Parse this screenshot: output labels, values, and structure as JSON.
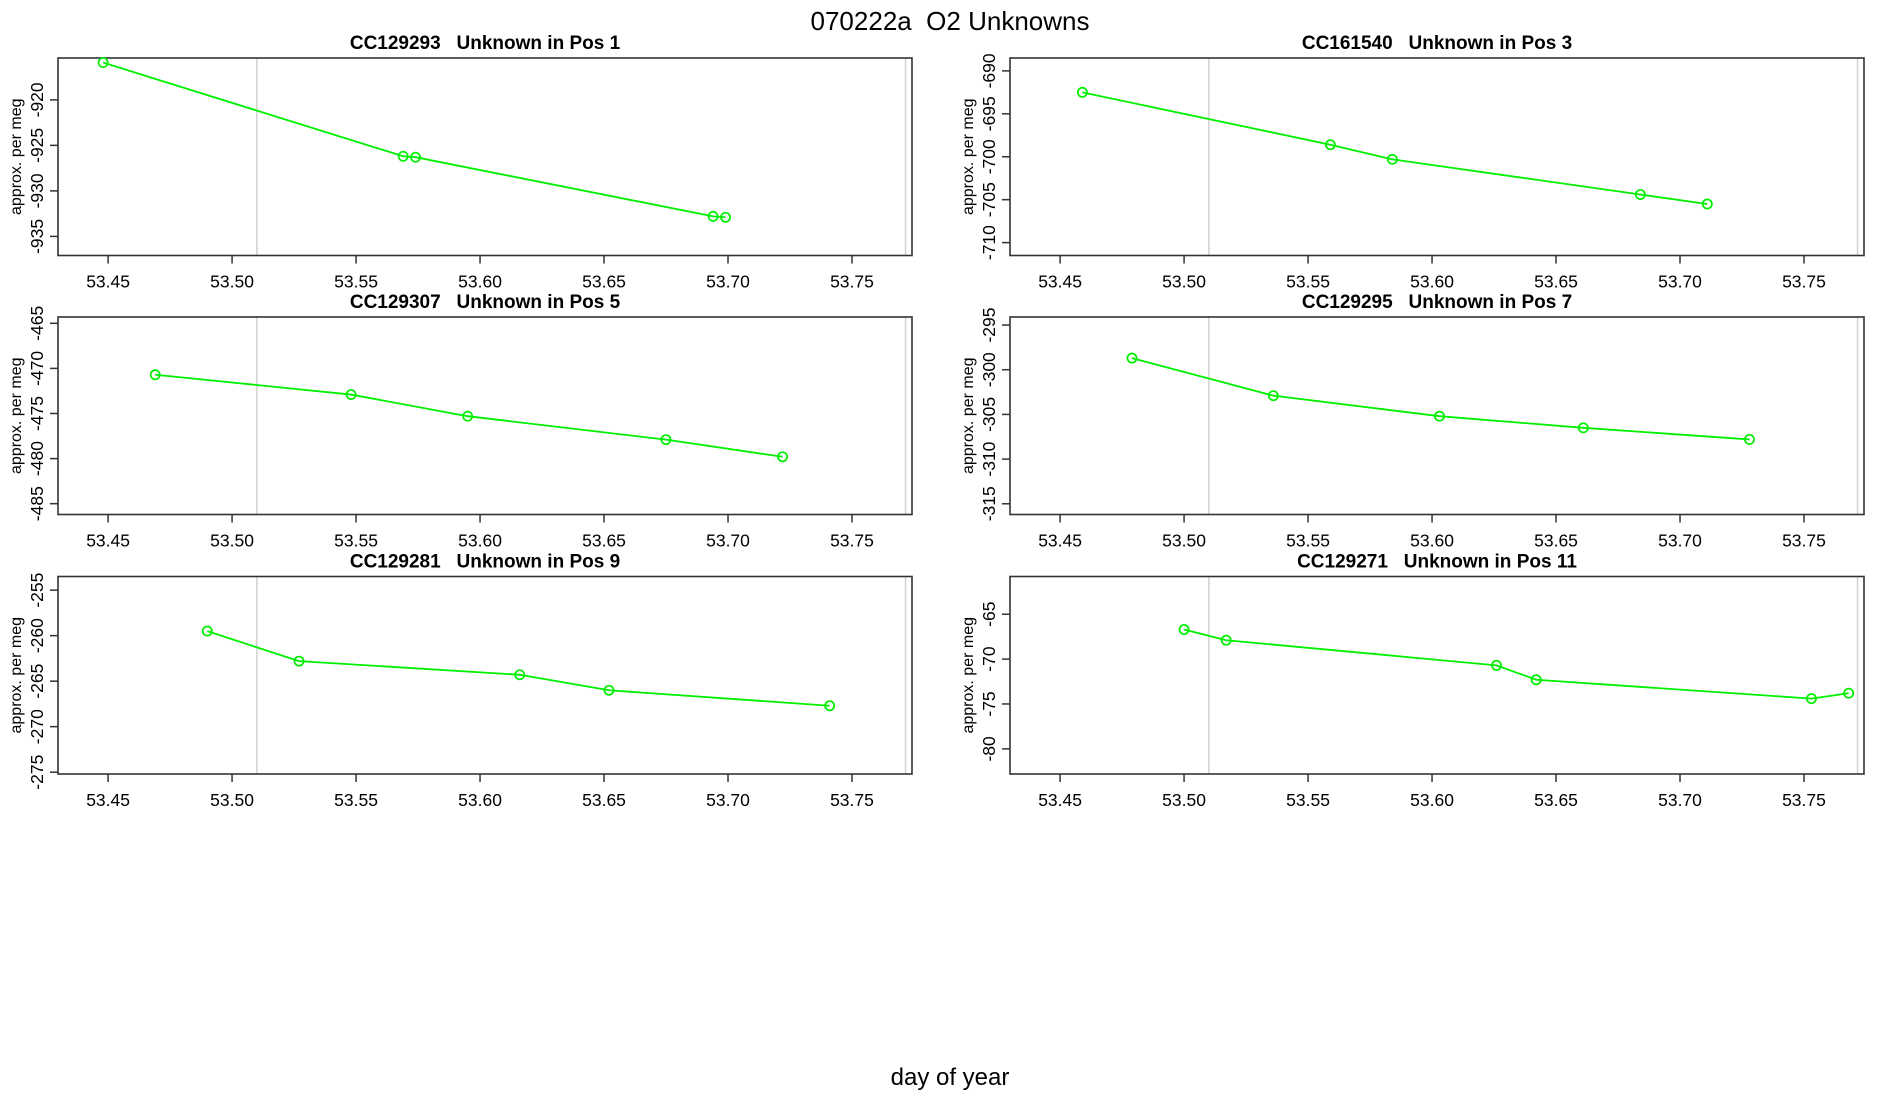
{
  "figure": {
    "title": "070222a  O2 Unknowns",
    "xlabel": "day of year"
  },
  "colors": {
    "series": "#00f000",
    "reference_line": "#d2d2d2",
    "axis": "#333333",
    "text": "#000000"
  },
  "chart_data": [
    {
      "type": "line",
      "title": "CC129293   Unknown in Pos 1",
      "ylabel": "approx. per meg",
      "x": [
        53.448,
        53.569,
        53.574,
        53.694,
        53.699
      ],
      "y": [
        -915.9,
        -926.2,
        -926.3,
        -932.8,
        -932.9
      ],
      "xlim": [
        53.4298,
        53.7742
      ],
      "ylim": [
        -937.1,
        -915.4
      ],
      "xticks": [
        53.45,
        53.5,
        53.55,
        53.6,
        53.65,
        53.7,
        53.75
      ],
      "xtick_labels": [
        "53.45",
        "53.50",
        "53.55",
        "53.60",
        "53.65",
        "53.70",
        "53.75"
      ],
      "yticks": [
        -920,
        -925,
        -930,
        -935
      ],
      "ytick_labels": [
        "-920",
        "-925",
        "-930",
        "-935"
      ],
      "ref_lines_x": [
        53.51,
        53.7716
      ],
      "grid": false,
      "legend": "none",
      "marker": "open-circle"
    },
    {
      "type": "line",
      "title": "CC161540   Unknown in Pos 3",
      "ylabel": "approx. per meg",
      "x": [
        53.459,
        53.559,
        53.584,
        53.684,
        53.711
      ],
      "y": [
        -692.5,
        -698.6,
        -700.3,
        -704.4,
        -705.5
      ],
      "xlim": [
        53.4298,
        53.7742
      ],
      "ylim": [
        -711.5,
        -688.5
      ],
      "xticks": [
        53.45,
        53.5,
        53.55,
        53.6,
        53.65,
        53.7,
        53.75
      ],
      "xtick_labels": [
        "53.45",
        "53.50",
        "53.55",
        "53.60",
        "53.65",
        "53.70",
        "53.75"
      ],
      "yticks": [
        -690,
        -695,
        -700,
        -705,
        -710
      ],
      "ytick_labels": [
        "-690",
        "-695",
        "-700",
        "-705",
        "-710"
      ],
      "ref_lines_x": [
        53.51,
        53.7716
      ],
      "grid": false,
      "legend": "none",
      "marker": "open-circle"
    },
    {
      "type": "line",
      "title": "CC129307   Unknown in Pos 5",
      "ylabel": "approx. per meg",
      "x": [
        53.469,
        53.548,
        53.595,
        53.675,
        53.722
      ],
      "y": [
        -470.7,
        -472.9,
        -475.3,
        -477.9,
        -479.8
      ],
      "xlim": [
        53.4298,
        53.7742
      ],
      "ylim": [
        -486.2,
        -464.3
      ],
      "xticks": [
        53.45,
        53.5,
        53.55,
        53.6,
        53.65,
        53.7,
        53.75
      ],
      "xtick_labels": [
        "53.45",
        "53.50",
        "53.55",
        "53.60",
        "53.65",
        "53.70",
        "53.75"
      ],
      "yticks": [
        -465,
        -470,
        -475,
        -480,
        -485
      ],
      "ytick_labels": [
        "-465",
        "-470",
        "-475",
        "-480",
        "-485"
      ],
      "ref_lines_x": [
        53.51,
        53.7716
      ],
      "grid": false,
      "legend": "none",
      "marker": "open-circle"
    },
    {
      "type": "line",
      "title": "CC129295   Unknown in Pos 7",
      "ylabel": "approx. per meg",
      "x": [
        53.479,
        53.536,
        53.603,
        53.661,
        53.728
      ],
      "y": [
        -298.7,
        -302.9,
        -305.2,
        -306.5,
        -307.8
      ],
      "xlim": [
        53.4298,
        53.7742
      ],
      "ylim": [
        -316.2,
        -294.1
      ],
      "xticks": [
        53.45,
        53.5,
        53.55,
        53.6,
        53.65,
        53.7,
        53.75
      ],
      "xtick_labels": [
        "53.45",
        "53.50",
        "53.55",
        "53.60",
        "53.65",
        "53.70",
        "53.75"
      ],
      "yticks": [
        -295,
        -300,
        -305,
        -310,
        -315
      ],
      "ytick_labels": [
        "-295",
        "-300",
        "-305",
        "-310",
        "-315"
      ],
      "ref_lines_x": [
        53.51,
        53.7716
      ],
      "grid": false,
      "legend": "none",
      "marker": "open-circle"
    },
    {
      "type": "line",
      "title": "CC129281   Unknown in Pos 9",
      "ylabel": "approx. per meg",
      "x": [
        53.49,
        53.527,
        53.616,
        53.652,
        53.741
      ],
      "y": [
        -259.5,
        -262.8,
        -264.3,
        -266.0,
        -267.7
      ],
      "xlim": [
        53.4298,
        53.7742
      ],
      "ylim": [
        -275.2,
        -253.5
      ],
      "xticks": [
        53.45,
        53.5,
        53.55,
        53.6,
        53.65,
        53.7,
        53.75
      ],
      "xtick_labels": [
        "53.45",
        "53.50",
        "53.55",
        "53.60",
        "53.65",
        "53.70",
        "53.75"
      ],
      "yticks": [
        -255,
        -260,
        -265,
        -270,
        -275
      ],
      "ytick_labels": [
        "-255",
        "-260",
        "-265",
        "-270",
        "-275"
      ],
      "ref_lines_x": [
        53.51,
        53.7716
      ],
      "grid": false,
      "legend": "none",
      "marker": "open-circle"
    },
    {
      "type": "line",
      "title": "CC129271   Unknown in Pos 11",
      "ylabel": "approx. per meg",
      "x": [
        53.5,
        53.517,
        53.626,
        53.642,
        53.753,
        53.768
      ],
      "y": [
        -66.7,
        -67.9,
        -70.7,
        -72.3,
        -74.4,
        -73.8
      ],
      "xlim": [
        53.4298,
        53.7742
      ],
      "ylim": [
        -82.8,
        -60.8
      ],
      "xticks": [
        53.45,
        53.5,
        53.55,
        53.6,
        53.65,
        53.7,
        53.75
      ],
      "xtick_labels": [
        "53.45",
        "53.50",
        "53.55",
        "53.60",
        "53.65",
        "53.70",
        "53.75"
      ],
      "yticks": [
        -65,
        -70,
        -75,
        -80
      ],
      "ytick_labels": [
        "-65",
        "-70",
        "-75",
        "-80"
      ],
      "ref_lines_x": [
        53.51,
        53.7716
      ],
      "grid": false,
      "legend": "none",
      "marker": "open-circle"
    }
  ]
}
